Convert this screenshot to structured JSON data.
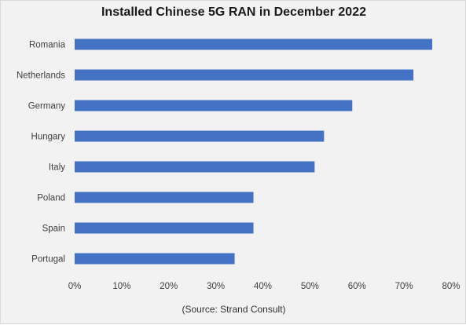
{
  "chart_data": {
    "type": "bar",
    "orientation": "horizontal",
    "title": "Installed Chinese 5G RAN in December 2022",
    "categories": [
      "Romania",
      "Netherlands",
      "Germany",
      "Hungary",
      "Italy",
      "Poland",
      "Spain",
      "Portugal"
    ],
    "values": [
      0.76,
      0.72,
      0.59,
      0.53,
      0.51,
      0.38,
      0.38,
      0.34
    ],
    "xlim": [
      0,
      0.8
    ],
    "x_ticks": [
      "0%",
      "10%",
      "20%",
      "30%",
      "40%",
      "50%",
      "60%",
      "70%",
      "80%"
    ],
    "xlabel": "",
    "ylabel": "",
    "grid": false,
    "legend": "none",
    "bar_color": "#4472c4",
    "note": "(Source: Strand Consult)"
  }
}
